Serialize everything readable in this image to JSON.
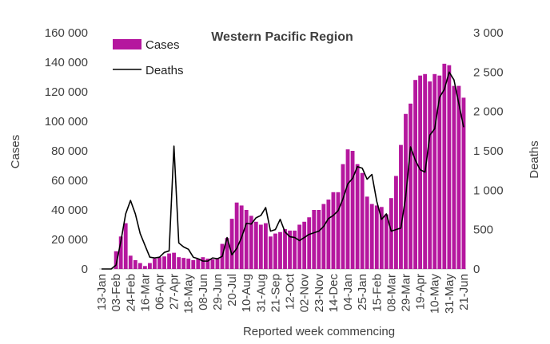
{
  "chart_data": {
    "type": "bar",
    "title": "Western Pacific Region",
    "xlabel": "Reported week commencing",
    "ylabel": "Cases",
    "y2label": "Deaths",
    "ylim": [
      0,
      160000
    ],
    "y2lim": [
      0,
      3000
    ],
    "yticks": [
      "0",
      "20 000",
      "40 000",
      "60 000",
      "80 000",
      "100 000",
      "120 000",
      "140 000",
      "160 000"
    ],
    "y2ticks": [
      "0",
      "500",
      "1 000",
      "1 500",
      "2 000",
      "2 500",
      "3 000"
    ],
    "legend": {
      "position": "top-left",
      "items": [
        "Cases",
        "Deaths"
      ]
    },
    "colors": {
      "cases": "#b5179e",
      "deaths": "#000000",
      "axis": "#bfbfbf",
      "text": "#404040"
    },
    "x_tick_labels": [
      {
        "week": 1,
        "label": "13-Jan"
      },
      {
        "week": 4,
        "label": "03-Feb"
      },
      {
        "week": 7,
        "label": "24-Feb"
      },
      {
        "week": 10,
        "label": "16-Mar"
      },
      {
        "week": 13,
        "label": "06-Apr"
      },
      {
        "week": 16,
        "label": "27-Apr"
      },
      {
        "week": 19,
        "label": "18-May"
      },
      {
        "week": 22,
        "label": "08-Jun"
      },
      {
        "week": 25,
        "label": "29-Jun"
      },
      {
        "week": 28,
        "label": "20-Jul"
      },
      {
        "week": 31,
        "label": "10-Aug"
      },
      {
        "week": 34,
        "label": "31-Aug"
      },
      {
        "week": 37,
        "label": "21-Sep"
      },
      {
        "week": 40,
        "label": "12-Oct"
      },
      {
        "week": 43,
        "label": "02-Nov"
      },
      {
        "week": 46,
        "label": "23-Nov"
      },
      {
        "week": 49,
        "label": "14-Dec"
      },
      {
        "week": 52,
        "label": "04-Jan"
      },
      {
        "week": 55,
        "label": "25-Jan"
      },
      {
        "week": 58,
        "label": "15-Feb"
      },
      {
        "week": 61,
        "label": "08-Mar"
      },
      {
        "week": 64,
        "label": "29-Mar"
      },
      {
        "week": 67,
        "label": "19-Apr"
      },
      {
        "week": 70,
        "label": "10-May"
      },
      {
        "week": 73,
        "label": "31-May"
      },
      {
        "week": 76,
        "label": "21-Jun"
      }
    ],
    "series": [
      {
        "name": "Cases",
        "type": "bar",
        "axis": "left",
        "values": [
          0,
          0,
          0,
          12000,
          22000,
          31000,
          9000,
          6000,
          4000,
          2000,
          4000,
          7000,
          8000,
          8500,
          10500,
          11000,
          8000,
          7500,
          7000,
          6000,
          7000,
          8000,
          7000,
          6500,
          7000,
          17000,
          21000,
          34000,
          45000,
          43000,
          40000,
          36000,
          32000,
          30000,
          31000,
          22000,
          24000,
          25000,
          27000,
          26000,
          26000,
          30000,
          32000,
          35000,
          40000,
          40000,
          44000,
          47000,
          52000,
          52000,
          71000,
          81000,
          80000,
          71000,
          65000,
          49000,
          44000,
          43000,
          42000,
          37000,
          48000,
          63000,
          84000,
          105000,
          112000,
          128000,
          131000,
          132000,
          127000,
          132000,
          131000,
          139000,
          138000,
          124000,
          124000,
          116000
        ]
      },
      {
        "name": "Deaths",
        "type": "line",
        "axis": "right",
        "values": [
          0,
          0,
          0,
          50,
          350,
          700,
          870,
          700,
          450,
          300,
          150,
          140,
          150,
          210,
          230,
          1560,
          330,
          280,
          250,
          150,
          130,
          100,
          100,
          140,
          130,
          160,
          400,
          180,
          260,
          400,
          580,
          570,
          650,
          680,
          780,
          480,
          500,
          630,
          470,
          410,
          400,
          360,
          400,
          440,
          460,
          480,
          540,
          640,
          680,
          740,
          890,
          1080,
          1150,
          1300,
          1280,
          1140,
          1200,
          860,
          630,
          700,
          480,
          500,
          520,
          920,
          1550,
          1380,
          1260,
          1230,
          1700,
          1780,
          2180,
          2280,
          2500,
          2400,
          2100,
          1800
        ]
      }
    ]
  }
}
